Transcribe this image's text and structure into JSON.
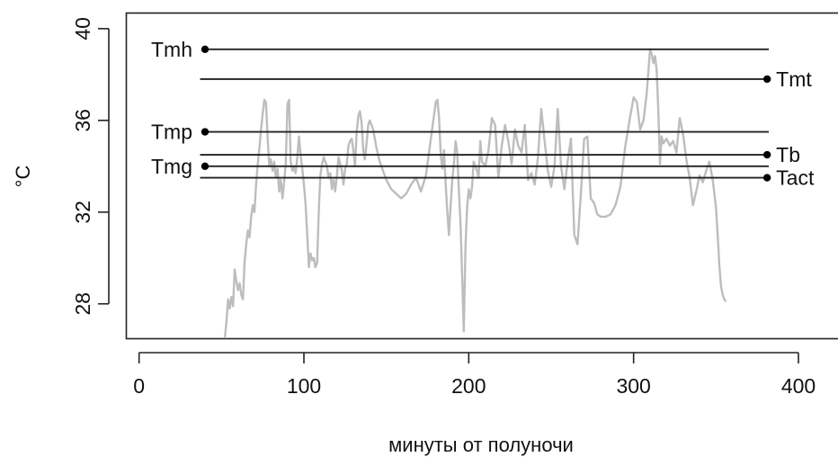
{
  "chart_data": {
    "type": "line",
    "xlabel": "минуты от полуночи",
    "ylabel": "°C",
    "xlim": [
      -8,
      424
    ],
    "ylim": [
      26.5,
      40.7
    ],
    "x_ticks": [
      0,
      100,
      200,
      300,
      400
    ],
    "y_ticks": [
      28,
      32,
      36,
      40
    ],
    "grid": false,
    "colors": {
      "series": "#bdbdbd",
      "reference": "#222222",
      "axis": "#222222"
    },
    "reference_lines": [
      {
        "label": "Tmh",
        "y": 39.1,
        "x_start": 40,
        "x_end": 382,
        "label_side": "left"
      },
      {
        "label": "Tmt",
        "y": 37.8,
        "x_start": 37,
        "x_end": 381,
        "label_side": "right"
      },
      {
        "label": "Tmp",
        "y": 35.5,
        "x_start": 40,
        "x_end": 382,
        "label_side": "left"
      },
      {
        "label": "Tb",
        "y": 34.5,
        "x_start": 37,
        "x_end": 381,
        "label_side": "right"
      },
      {
        "label": "Tmg",
        "y": 34.0,
        "x_start": 40,
        "x_end": 382,
        "label_side": "left"
      },
      {
        "label": "Tact",
        "y": 33.5,
        "x_start": 37,
        "x_end": 381,
        "label_side": "right"
      }
    ],
    "series": [
      {
        "x": [
          52,
          53,
          54,
          55,
          56,
          57,
          58,
          59,
          60,
          61,
          62,
          63,
          64,
          65,
          66,
          67,
          68,
          69,
          70,
          71,
          72,
          73,
          74,
          75,
          76,
          77,
          78,
          79,
          80,
          81,
          82,
          83,
          84,
          85,
          86,
          87,
          88,
          89,
          90,
          91,
          92,
          93,
          94,
          95,
          96,
          97,
          98,
          99,
          100,
          101,
          102,
          103,
          104,
          105,
          106,
          107,
          108,
          109,
          110,
          111,
          112,
          113,
          114,
          115,
          116,
          117,
          118,
          119,
          120,
          121,
          122,
          123,
          124,
          125,
          126,
          127,
          128,
          129,
          130,
          131,
          132,
          133,
          134,
          135,
          136,
          137,
          138,
          139,
          140,
          142,
          144,
          146,
          148,
          150,
          153,
          156,
          159,
          162,
          165,
          168,
          171,
          174,
          177,
          180,
          181,
          182,
          183,
          184,
          185,
          186,
          187,
          188,
          189,
          190,
          191,
          192,
          193,
          194,
          195,
          196,
          197,
          198,
          199,
          200,
          201,
          202,
          203,
          204,
          205,
          206,
          207,
          208,
          210,
          212,
          214,
          216,
          218,
          220,
          222,
          224,
          226,
          228,
          230,
          232,
          234,
          236,
          238,
          240,
          242,
          244,
          246,
          248,
          250,
          252,
          254,
          256,
          258,
          260,
          262,
          264,
          266,
          268,
          270,
          272,
          274,
          276,
          278,
          280,
          283,
          286,
          289,
          292,
          295,
          298,
          300,
          302,
          304,
          306,
          308,
          310,
          311,
          312,
          313,
          314,
          315,
          316,
          317,
          318,
          320,
          322,
          324,
          326,
          328,
          330,
          332,
          334,
          336,
          338,
          340,
          342,
          344,
          346,
          348,
          350,
          351,
          352,
          353,
          354,
          355,
          356
        ],
        "y": [
          26.5,
          27.2,
          28.2,
          27.8,
          28.3,
          27.9,
          29.5,
          29.0,
          28.6,
          28.9,
          28.4,
          28.2,
          29.8,
          30.6,
          31.2,
          30.9,
          31.8,
          32.3,
          32.0,
          33.2,
          34.1,
          34.8,
          35.6,
          36.3,
          36.9,
          36.8,
          35.2,
          34.0,
          34.3,
          33.8,
          34.2,
          33.5,
          33.9,
          32.9,
          33.4,
          32.6,
          33.3,
          34.1,
          36.7,
          36.9,
          34.2,
          33.8,
          34.0,
          33.7,
          34.4,
          35.3,
          34.5,
          33.9,
          33.2,
          32.4,
          31.0,
          29.6,
          30.2,
          29.9,
          30.0,
          29.6,
          29.8,
          32.0,
          33.6,
          34.1,
          34.4,
          34.2,
          34.0,
          33.5,
          33.7,
          33.0,
          33.4,
          32.9,
          33.6,
          34.4,
          34.1,
          33.8,
          33.2,
          33.9,
          34.1,
          34.9,
          35.1,
          35.2,
          34.7,
          34.0,
          35.5,
          36.2,
          36.4,
          35.9,
          34.7,
          34.3,
          35.0,
          35.8,
          36.0,
          35.6,
          34.8,
          34.2,
          33.8,
          33.4,
          33.0,
          32.8,
          32.6,
          32.8,
          33.2,
          33.5,
          32.9,
          33.6,
          35.2,
          36.8,
          36.9,
          36.1,
          34.5,
          33.9,
          34.7,
          33.2,
          32.0,
          31.0,
          32.3,
          33.4,
          34.1,
          35.1,
          34.6,
          33.0,
          31.5,
          29.2,
          26.8,
          30.5,
          32.2,
          33.0,
          32.6,
          33.1,
          34.2,
          34.0,
          33.8,
          33.5,
          35.1,
          34.2,
          34.0,
          34.7,
          36.1,
          35.8,
          33.5,
          34.9,
          35.8,
          35.1,
          34.1,
          35.6,
          34.9,
          34.6,
          35.8,
          33.4,
          33.7,
          33.2,
          34.4,
          36.5,
          35.1,
          33.8,
          33.1,
          34.0,
          36.5,
          34.0,
          33.0,
          34.2,
          35.2,
          31.0,
          30.6,
          32.8,
          35.2,
          35.3,
          32.6,
          32.4,
          31.9,
          31.8,
          31.8,
          31.9,
          32.3,
          33.1,
          34.9,
          36.2,
          37.0,
          36.8,
          35.6,
          36.0,
          37.2,
          39.1,
          38.9,
          38.5,
          38.8,
          38.2,
          36.4,
          34.1,
          35.3,
          35.0,
          35.2,
          34.9,
          35.1,
          34.6,
          36.1,
          35.4,
          34.3,
          33.5,
          32.3,
          32.9,
          33.6,
          33.3,
          33.8,
          34.2,
          33.4,
          32.2,
          31.0,
          29.7,
          28.8,
          28.4,
          28.2,
          28.1
        ]
      }
    ]
  }
}
